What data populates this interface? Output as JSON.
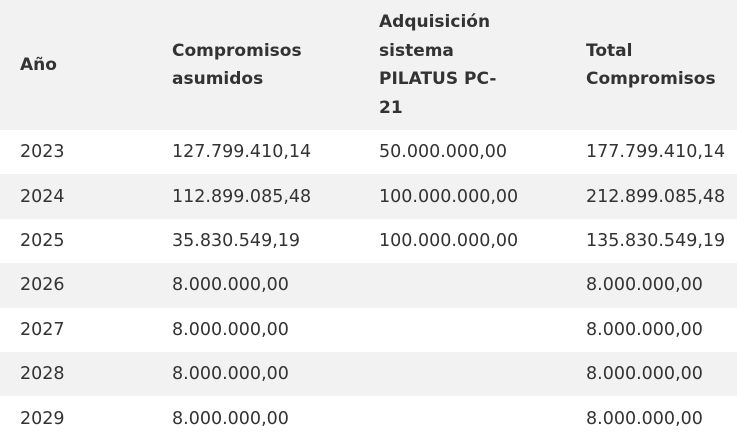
{
  "table": {
    "headers": [
      [
        "Año"
      ],
      [
        "Compromisos",
        "asumidos"
      ],
      [
        "Adquisición",
        "sistema",
        "PILATUS PC-",
        "21"
      ],
      [
        "Total",
        "Compromisos"
      ]
    ],
    "rows": [
      [
        "2023",
        "127.799.410,14",
        "50.000.000,00",
        "177.799.410,14"
      ],
      [
        "2024",
        "112.899.085,48",
        "100.000.000,00",
        "212.899.085,48"
      ],
      [
        "2025",
        "35.830.549,19",
        "100.000.000,00",
        "135.830.549,19"
      ],
      [
        "2026",
        "8.000.000,00",
        "",
        "8.000.000,00"
      ],
      [
        "2027",
        "8.000.000,00",
        "",
        "8.000.000,00"
      ],
      [
        "2028",
        "8.000.000,00",
        "",
        "8.000.000,00"
      ],
      [
        "2029",
        "8.000.000,00",
        "",
        "8.000.000,00"
      ]
    ]
  }
}
